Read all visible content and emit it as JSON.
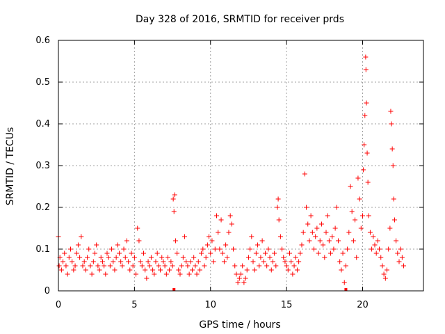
{
  "chart_data": {
    "type": "scatter",
    "title": "Day 328 of 2016, SRMTID for receiver prds",
    "xlabel": "GPS time / hours",
    "ylabel": "SRMTID / TECUs",
    "xlim": [
      0,
      24
    ],
    "ylim": [
      0,
      0.6
    ],
    "xticks": [
      0,
      5,
      10,
      15,
      20
    ],
    "xtick_labels": [
      "0",
      "5",
      "10",
      "15",
      "20"
    ],
    "yticks": [
      0,
      0.1,
      0.2,
      0.3,
      0.4,
      0.5,
      0.6
    ],
    "ytick_labels": [
      "0",
      "0.1",
      "0.2",
      "0.3",
      "0.4",
      "0.5",
      "0.6"
    ],
    "grid": true,
    "marker": "plus",
    "series_color": "#ff0000",
    "series": [
      {
        "name": "SRMTID",
        "points": [
          [
            0.0,
            0.13
          ],
          [
            0.05,
            0.06
          ],
          [
            0.1,
            0.08
          ],
          [
            0.2,
            0.05
          ],
          [
            0.3,
            0.07
          ],
          [
            0.4,
            0.09
          ],
          [
            0.5,
            0.06
          ],
          [
            0.6,
            0.04
          ],
          [
            0.7,
            0.08
          ],
          [
            0.8,
            0.1
          ],
          [
            0.9,
            0.07
          ],
          [
            1.0,
            0.05
          ],
          [
            1.1,
            0.06
          ],
          [
            1.2,
            0.09
          ],
          [
            1.3,
            0.11
          ],
          [
            1.4,
            0.08
          ],
          [
            1.5,
            0.13
          ],
          [
            1.6,
            0.06
          ],
          [
            1.7,
            0.07
          ],
          [
            1.8,
            0.05
          ],
          [
            1.9,
            0.08
          ],
          [
            2.0,
            0.1
          ],
          [
            2.1,
            0.06
          ],
          [
            2.2,
            0.04
          ],
          [
            2.3,
            0.07
          ],
          [
            2.4,
            0.09
          ],
          [
            2.5,
            0.11
          ],
          [
            2.6,
            0.06
          ],
          [
            2.7,
            0.05
          ],
          [
            2.8,
            0.08
          ],
          [
            2.9,
            0.07
          ],
          [
            3.0,
            0.06
          ],
          [
            3.1,
            0.04
          ],
          [
            3.2,
            0.09
          ],
          [
            3.3,
            0.08
          ],
          [
            3.4,
            0.06
          ],
          [
            3.5,
            0.1
          ],
          [
            3.6,
            0.07
          ],
          [
            3.7,
            0.05
          ],
          [
            3.8,
            0.08
          ],
          [
            3.9,
            0.11
          ],
          [
            4.0,
            0.09
          ],
          [
            4.1,
            0.07
          ],
          [
            4.2,
            0.06
          ],
          [
            4.3,
            0.1
          ],
          [
            4.4,
            0.08
          ],
          [
            4.5,
            0.12
          ],
          [
            4.6,
            0.07
          ],
          [
            4.7,
            0.05
          ],
          [
            4.8,
            0.09
          ],
          [
            4.9,
            0.06
          ],
          [
            5.0,
            0.08
          ],
          [
            5.1,
            0.04
          ],
          [
            5.2,
            0.15
          ],
          [
            5.3,
            0.12
          ],
          [
            5.4,
            0.07
          ],
          [
            5.5,
            0.06
          ],
          [
            5.6,
            0.09
          ],
          [
            5.7,
            0.05
          ],
          [
            5.8,
            0.03
          ],
          [
            5.9,
            0.07
          ],
          [
            6.0,
            0.06
          ],
          [
            6.1,
            0.08
          ],
          [
            6.2,
            0.05
          ],
          [
            6.3,
            0.04
          ],
          [
            6.4,
            0.07
          ],
          [
            6.5,
            0.09
          ],
          [
            6.6,
            0.06
          ],
          [
            6.7,
            0.05
          ],
          [
            6.8,
            0.08
          ],
          [
            6.9,
            0.07
          ],
          [
            7.0,
            0.06
          ],
          [
            7.1,
            0.04
          ],
          [
            7.2,
            0.08
          ],
          [
            7.3,
            0.05
          ],
          [
            7.4,
            0.07
          ],
          [
            7.5,
            0.06
          ],
          [
            7.55,
            0.22
          ],
          [
            7.6,
            0.19
          ],
          [
            7.65,
            0.23
          ],
          [
            7.7,
            0.12
          ],
          [
            7.8,
            0.09
          ],
          [
            7.9,
            0.05
          ],
          [
            8.0,
            0.04
          ],
          [
            8.1,
            0.06
          ],
          [
            8.2,
            0.08
          ],
          [
            8.3,
            0.13
          ],
          [
            8.4,
            0.07
          ],
          [
            8.5,
            0.06
          ],
          [
            8.6,
            0.04
          ],
          [
            8.7,
            0.07
          ],
          [
            8.8,
            0.05
          ],
          [
            8.9,
            0.08
          ],
          [
            9.0,
            0.06
          ],
          [
            9.1,
            0.04
          ],
          [
            9.2,
            0.07
          ],
          [
            9.3,
            0.05
          ],
          [
            9.4,
            0.09
          ],
          [
            9.5,
            0.1
          ],
          [
            9.6,
            0.06
          ],
          [
            9.7,
            0.08
          ],
          [
            9.8,
            0.11
          ],
          [
            9.9,
            0.13
          ],
          [
            10.0,
            0.09
          ],
          [
            10.1,
            0.12
          ],
          [
            10.2,
            0.07
          ],
          [
            10.3,
            0.1
          ],
          [
            10.4,
            0.18
          ],
          [
            10.5,
            0.14
          ],
          [
            10.6,
            0.1
          ],
          [
            10.7,
            0.17
          ],
          [
            10.8,
            0.09
          ],
          [
            10.9,
            0.07
          ],
          [
            11.0,
            0.11
          ],
          [
            11.1,
            0.08
          ],
          [
            11.2,
            0.14
          ],
          [
            11.3,
            0.18
          ],
          [
            11.4,
            0.16
          ],
          [
            11.5,
            0.1
          ],
          [
            11.6,
            0.06
          ],
          [
            11.7,
            0.04
          ],
          [
            11.8,
            0.02
          ],
          [
            11.9,
            0.03
          ],
          [
            12.0,
            0.04
          ],
          [
            12.1,
            0.06
          ],
          [
            12.2,
            0.02
          ],
          [
            12.3,
            0.03
          ],
          [
            12.4,
            0.05
          ],
          [
            12.5,
            0.08
          ],
          [
            12.6,
            0.1
          ],
          [
            12.7,
            0.13
          ],
          [
            12.8,
            0.07
          ],
          [
            12.9,
            0.05
          ],
          [
            13.0,
            0.09
          ],
          [
            13.1,
            0.11
          ],
          [
            13.2,
            0.06
          ],
          [
            13.3,
            0.08
          ],
          [
            13.4,
            0.12
          ],
          [
            13.5,
            0.07
          ],
          [
            13.6,
            0.09
          ],
          [
            13.7,
            0.06
          ],
          [
            13.8,
            0.1
          ],
          [
            13.9,
            0.08
          ],
          [
            14.0,
            0.05
          ],
          [
            14.1,
            0.07
          ],
          [
            14.2,
            0.09
          ],
          [
            14.3,
            0.06
          ],
          [
            14.4,
            0.2
          ],
          [
            14.45,
            0.22
          ],
          [
            14.5,
            0.17
          ],
          [
            14.6,
            0.13
          ],
          [
            14.7,
            0.1
          ],
          [
            14.8,
            0.08
          ],
          [
            14.9,
            0.07
          ],
          [
            15.0,
            0.06
          ],
          [
            15.1,
            0.05
          ],
          [
            15.2,
            0.09
          ],
          [
            15.3,
            0.07
          ],
          [
            15.4,
            0.04
          ],
          [
            15.5,
            0.06
          ],
          [
            15.6,
            0.08
          ],
          [
            15.7,
            0.05
          ],
          [
            15.8,
            0.07
          ],
          [
            15.9,
            0.09
          ],
          [
            16.0,
            0.11
          ],
          [
            16.1,
            0.14
          ],
          [
            16.2,
            0.28
          ],
          [
            16.3,
            0.2
          ],
          [
            16.4,
            0.16
          ],
          [
            16.5,
            0.12
          ],
          [
            16.6,
            0.18
          ],
          [
            16.7,
            0.14
          ],
          [
            16.8,
            0.1
          ],
          [
            16.9,
            0.13
          ],
          [
            17.0,
            0.15
          ],
          [
            17.1,
            0.09
          ],
          [
            17.2,
            0.12
          ],
          [
            17.3,
            0.16
          ],
          [
            17.4,
            0.11
          ],
          [
            17.5,
            0.08
          ],
          [
            17.6,
            0.14
          ],
          [
            17.7,
            0.18
          ],
          [
            17.8,
            0.12
          ],
          [
            17.9,
            0.09
          ],
          [
            18.0,
            0.13
          ],
          [
            18.1,
            0.1
          ],
          [
            18.2,
            0.15
          ],
          [
            18.3,
            0.2
          ],
          [
            18.4,
            0.12
          ],
          [
            18.5,
            0.07
          ],
          [
            18.6,
            0.05
          ],
          [
            18.7,
            0.09
          ],
          [
            18.8,
            0.02
          ],
          [
            18.9,
            0.06
          ],
          [
            19.0,
            0.1
          ],
          [
            19.1,
            0.14
          ],
          [
            19.2,
            0.25
          ],
          [
            19.3,
            0.19
          ],
          [
            19.4,
            0.12
          ],
          [
            19.5,
            0.17
          ],
          [
            19.6,
            0.08
          ],
          [
            19.7,
            0.27
          ],
          [
            19.8,
            0.22
          ],
          [
            19.9,
            0.15
          ],
          [
            20.0,
            0.18
          ],
          [
            20.05,
            0.29
          ],
          [
            20.1,
            0.35
          ],
          [
            20.15,
            0.42
          ],
          [
            20.2,
            0.56
          ],
          [
            20.22,
            0.53
          ],
          [
            20.25,
            0.45
          ],
          [
            20.3,
            0.33
          ],
          [
            20.35,
            0.26
          ],
          [
            20.4,
            0.18
          ],
          [
            20.5,
            0.14
          ],
          [
            20.6,
            0.1
          ],
          [
            20.7,
            0.13
          ],
          [
            20.8,
            0.11
          ],
          [
            20.9,
            0.09
          ],
          [
            21.0,
            0.12
          ],
          [
            21.1,
            0.1
          ],
          [
            21.2,
            0.08
          ],
          [
            21.3,
            0.06
          ],
          [
            21.4,
            0.04
          ],
          [
            21.5,
            0.03
          ],
          [
            21.6,
            0.05
          ],
          [
            21.7,
            0.1
          ],
          [
            21.8,
            0.15
          ],
          [
            21.85,
            0.43
          ],
          [
            21.9,
            0.4
          ],
          [
            21.95,
            0.34
          ],
          [
            22.0,
            0.3
          ],
          [
            22.05,
            0.22
          ],
          [
            22.1,
            0.17
          ],
          [
            22.2,
            0.12
          ],
          [
            22.3,
            0.09
          ],
          [
            22.4,
            0.07
          ],
          [
            22.5,
            0.1
          ],
          [
            22.6,
            0.08
          ],
          [
            22.7,
            0.06
          ]
        ]
      }
    ],
    "baseline_markers_x": [
      7.6,
      18.9
    ]
  }
}
